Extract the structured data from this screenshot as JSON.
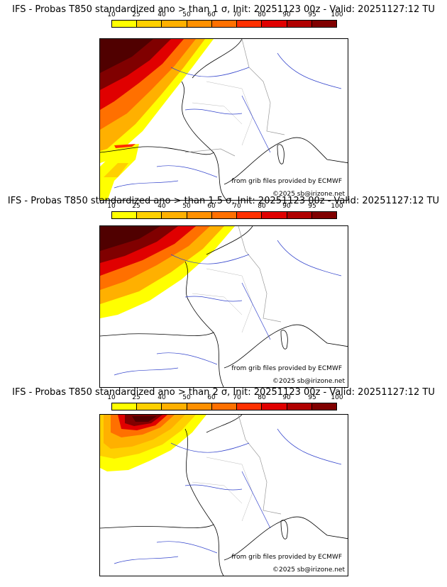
{
  "legend": {
    "ticks": [
      "10",
      "25",
      "40",
      "50",
      "60",
      "70",
      "80",
      "90",
      "95",
      "100"
    ],
    "colors": [
      "#ffff00",
      "#ffd000",
      "#ffb000",
      "#ff9000",
      "#ff7000",
      "#ff3000",
      "#e00000",
      "#b00000",
      "#800000",
      "#500000"
    ]
  },
  "panels": [
    {
      "title": "IFS - Probas T850  standardized ano > than 1 σ, Init: 20251123 00z - Valid: 20251127:12 TU",
      "source": "from grib files provided by ECMWF",
      "copyright": "©2025 sb@irizone.net",
      "threshold_sigma": 1
    },
    {
      "title": "IFS - Probas T850  standardized ano > than 1.5 σ, Init: 20251123 00z - Valid: 20251127:12 TU",
      "source": "from grib files provided by ECMWF",
      "copyright": "©2025 sb@irizone.net",
      "threshold_sigma": 1.5
    },
    {
      "title": "IFS - Probas T850  standardized ano > than 2 σ, Init: 20251123 00z - Valid: 20251127:12 TU",
      "source": "from grib files provided by ECMWF",
      "copyright": "©2025 sb@irizone.net",
      "threshold_sigma": 2
    }
  ]
}
